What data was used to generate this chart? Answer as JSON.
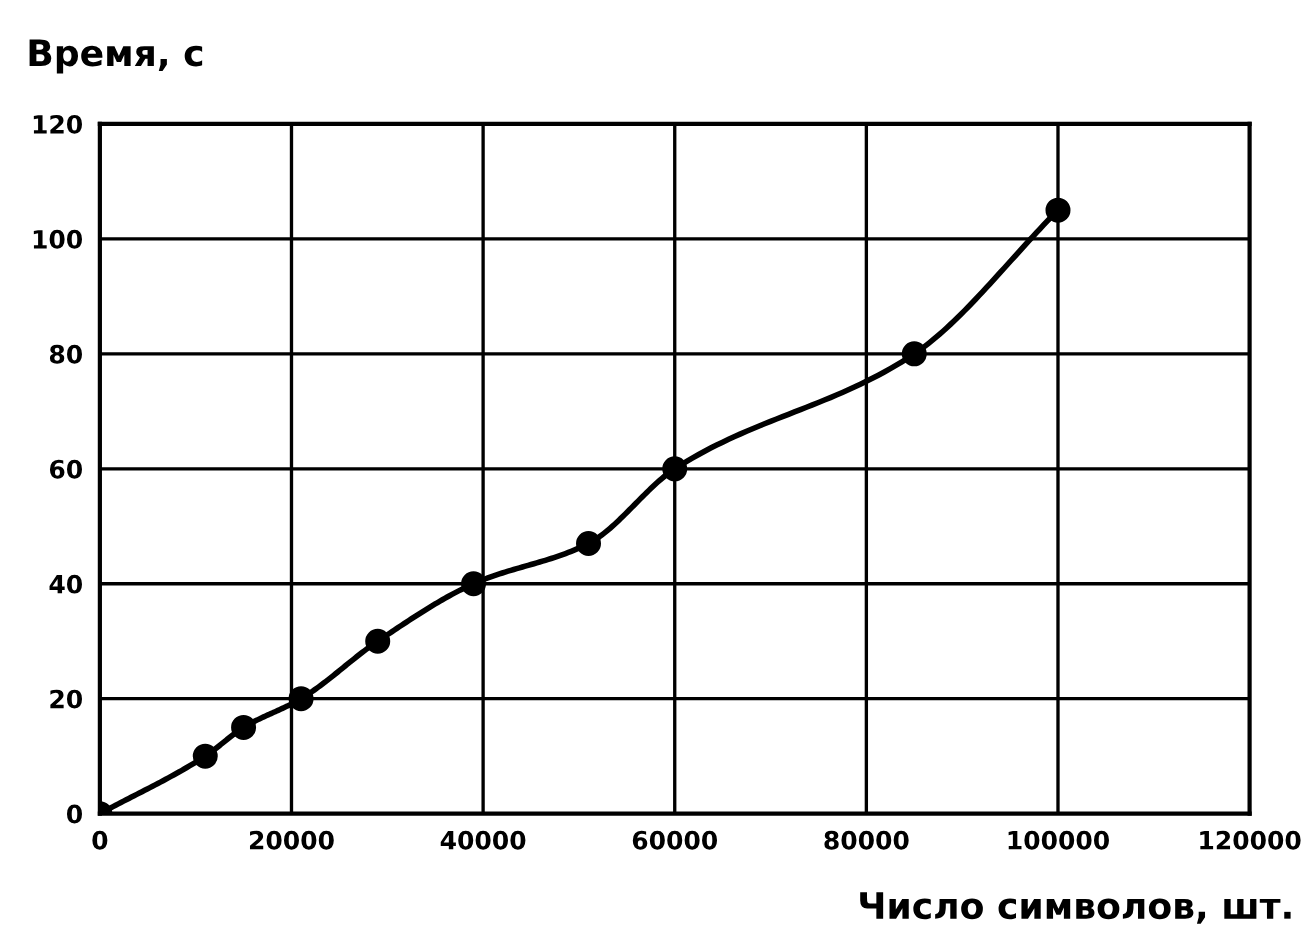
{
  "chart_data": {
    "type": "line",
    "ylabel": "Время, с",
    "xlabel": "Число символов, шт.",
    "x": [
      0,
      11000,
      15000,
      21000,
      29000,
      39000,
      51000,
      60000,
      85000,
      100000
    ],
    "series": [
      {
        "color": "#000000",
        "values": [
          0,
          10,
          15,
          20,
          30,
          40,
          47,
          60,
          80,
          105
        ]
      }
    ],
    "xlim": [
      0,
      120000
    ],
    "xticks": [
      0,
      20000,
      40000,
      60000,
      80000,
      100000,
      120000
    ],
    "ylim": [
      0,
      120
    ],
    "yticks": [
      0,
      20,
      40,
      60,
      80,
      100,
      120
    ],
    "grid": true,
    "marker": "circle",
    "line_style": "solid"
  }
}
